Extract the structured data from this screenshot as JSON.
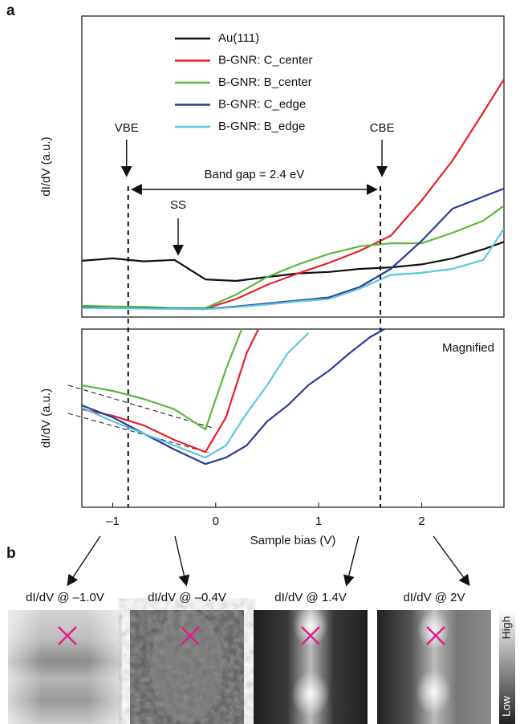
{
  "panel_labels": [
    "a",
    "b"
  ],
  "chart_data": [
    {
      "type": "line",
      "ylabel": "dI/dV (a.u.)",
      "x": [
        -1.3,
        -1.0,
        -0.7,
        -0.4,
        -0.1,
        0.2,
        0.5,
        0.8,
        1.1,
        1.4,
        1.7,
        2.0,
        2.3,
        2.6,
        2.8
      ],
      "xlim": [
        -1.3,
        2.8
      ],
      "ylim": [
        0,
        10
      ],
      "series": [
        {
          "name": "Au(111)",
          "color": "#111111",
          "values": [
            1.87,
            1.95,
            1.85,
            1.9,
            1.25,
            1.2,
            1.33,
            1.45,
            1.5,
            1.6,
            1.65,
            1.75,
            1.95,
            2.25,
            2.5
          ]
        },
        {
          "name": "B-GNR: C_center",
          "color": "#e8202a",
          "values": [
            0.35,
            0.33,
            0.32,
            0.3,
            0.28,
            0.6,
            1.07,
            1.45,
            1.8,
            2.2,
            2.7,
            3.87,
            5.2,
            6.8,
            7.9
          ]
        },
        {
          "name": "B-GNR: B_center",
          "color": "#5cb83c",
          "values": [
            0.38,
            0.35,
            0.34,
            0.3,
            0.3,
            0.75,
            1.33,
            1.75,
            2.1,
            2.35,
            2.45,
            2.45,
            2.8,
            3.2,
            3.7
          ]
        },
        {
          "name": "B-GNR: C_edge",
          "color": "#2a3d9a",
          "values": [
            0.32,
            0.3,
            0.3,
            0.28,
            0.27,
            0.35,
            0.45,
            0.55,
            0.65,
            1.0,
            1.6,
            2.53,
            3.6,
            4.0,
            4.27
          ]
        },
        {
          "name": "B-GNR: B_edge",
          "color": "#5bc8dc",
          "values": [
            0.3,
            0.3,
            0.28,
            0.27,
            0.26,
            0.33,
            0.42,
            0.52,
            0.6,
            0.95,
            1.4,
            1.47,
            1.6,
            1.9,
            2.93
          ]
        }
      ],
      "band_edges": [
        {
          "label": "VBE",
          "x": -0.85
        },
        {
          "label": "CBE",
          "x": 1.6
        }
      ],
      "band_gap_label": "Band gap = 2.4 eV",
      "ss_label": "SS"
    },
    {
      "type": "line",
      "ylabel": "dI/dV (a.u.)",
      "annotation": "Magnified",
      "x": [
        -1.3,
        -1.0,
        -0.7,
        -0.4,
        -0.1,
        0.1,
        0.3,
        0.5,
        0.7,
        0.9,
        1.1,
        1.3,
        1.5,
        1.7
      ],
      "xlim": [
        -1.3,
        2.8
      ],
      "ylim": [
        0,
        10
      ],
      "xticks": [
        {
          "value": -1,
          "label": "–1"
        },
        0,
        1,
        2
      ],
      "xlabel": "Sample bias (V)",
      "series": [
        {
          "color": "#5cb83c",
          "values": [
            6.85,
            6.53,
            6.08,
            5.5,
            4.37,
            7.75,
            10.7,
            null,
            null,
            null,
            null,
            null,
            null,
            null
          ]
        },
        {
          "color": "#e8202a",
          "values": [
            5.5,
            5.14,
            4.6,
            3.78,
            3.1,
            5.05,
            8.65,
            11,
            null,
            null,
            null,
            null,
            null,
            null
          ]
        },
        {
          "color": "#2a3d9a",
          "values": [
            5.72,
            5.05,
            4.14,
            3.24,
            2.43,
            2.79,
            3.47,
            4.82,
            5.72,
            6.85,
            7.66,
            8.65,
            9.55,
            10.2
          ]
        },
        {
          "color": "#5bc8dc",
          "values": [
            5.59,
            4.82,
            4.14,
            3.47,
            2.79,
            3.47,
            5.27,
            6.85,
            8.65,
            9.77,
            null,
            null,
            null,
            null
          ]
        }
      ]
    }
  ],
  "maps": {
    "titles": [
      "dI/dV @ –1.0V",
      "dI/dV @ –0.4V",
      "dI/dV @ 1.4V",
      "dI/dV @ 2V"
    ],
    "colorbar": {
      "high": "High",
      "low": "Low"
    }
  }
}
